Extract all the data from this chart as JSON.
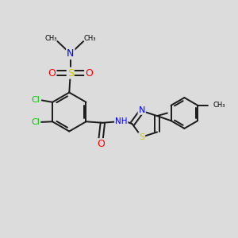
{
  "bg_color": "#dcdcdc",
  "bond_color": "#1a1a1a",
  "atom_colors": {
    "N": "#0000ff",
    "O": "#ff0000",
    "S": "#cccc00",
    "Cl": "#00cc00",
    "CH3": "#000000",
    "C": "#000000"
  },
  "figsize": [
    3.0,
    3.0
  ],
  "dpi": 100,
  "xlim": [
    0,
    10
  ],
  "ylim": [
    0,
    10
  ]
}
